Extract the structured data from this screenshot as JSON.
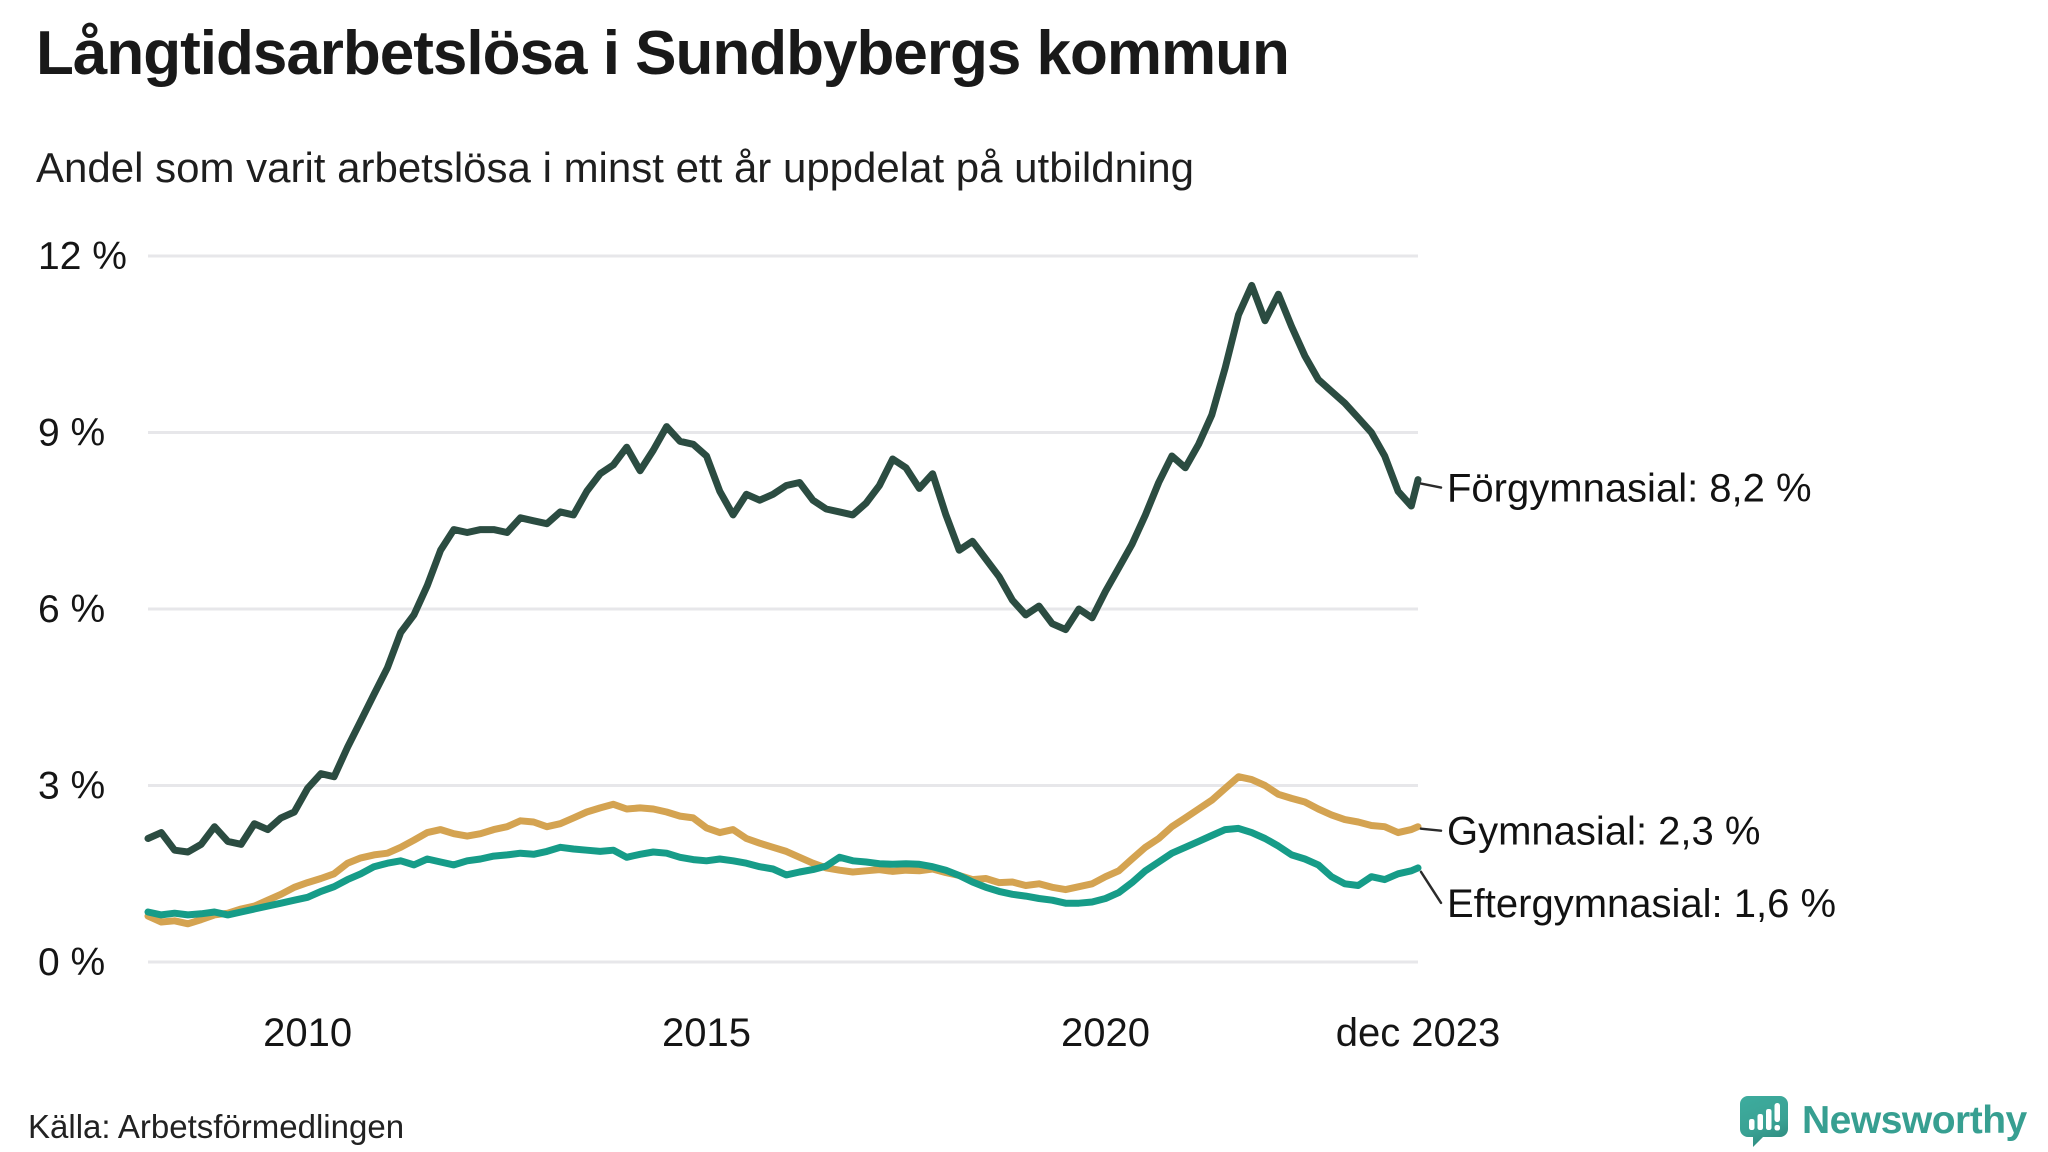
{
  "title": "Långtidsarbetslösa i Sundbybergs kommun",
  "subtitle": "Andel som varit arbetslösa i minst ett år uppdelat på utbildning",
  "source": "Källa: Arbetsförmedlingen",
  "brand": {
    "name": "Newsworthy",
    "color": "#3aa294"
  },
  "chart_data": {
    "type": "line",
    "title": "Långtidsarbetslösa i Sundbybergs kommun",
    "subtitle": "Andel som varit arbetslösa i minst ett år uppdelat på utbildning",
    "unit": "%",
    "grid": true,
    "x_range": [
      2008,
      2023.917
    ],
    "ylim": [
      0,
      12
    ],
    "y_ticks": [
      {
        "value": 12,
        "label": "12 %"
      },
      {
        "value": 9,
        "label": "9 %"
      },
      {
        "value": 6,
        "label": "6 %"
      },
      {
        "value": 3,
        "label": "3 %"
      },
      {
        "value": 0,
        "label": "0 %"
      }
    ],
    "x_ticks": [
      {
        "value": 2010,
        "label": "2010"
      },
      {
        "value": 2015,
        "label": "2015"
      },
      {
        "value": 2020,
        "label": "2020"
      },
      {
        "value": 2023.917,
        "label": "dec 2023"
      }
    ],
    "x": [
      2008,
      2008.167,
      2008.333,
      2008.5,
      2008.667,
      2008.833,
      2009,
      2009.167,
      2009.333,
      2009.5,
      2009.667,
      2009.833,
      2010,
      2010.167,
      2010.333,
      2010.5,
      2010.667,
      2010.833,
      2011,
      2011.167,
      2011.333,
      2011.5,
      2011.667,
      2011.833,
      2012,
      2012.167,
      2012.333,
      2012.5,
      2012.667,
      2012.833,
      2013,
      2013.167,
      2013.333,
      2013.5,
      2013.667,
      2013.833,
      2014,
      2014.167,
      2014.333,
      2014.5,
      2014.667,
      2014.833,
      2015,
      2015.167,
      2015.333,
      2015.5,
      2015.667,
      2015.833,
      2016,
      2016.167,
      2016.333,
      2016.5,
      2016.667,
      2016.833,
      2017,
      2017.167,
      2017.333,
      2017.5,
      2017.667,
      2017.833,
      2018,
      2018.167,
      2018.333,
      2018.5,
      2018.667,
      2018.833,
      2019,
      2019.167,
      2019.333,
      2019.5,
      2019.667,
      2019.833,
      2020,
      2020.167,
      2020.333,
      2020.5,
      2020.667,
      2020.833,
      2021,
      2021.167,
      2021.333,
      2021.5,
      2021.667,
      2021.833,
      2022,
      2022.167,
      2022.333,
      2022.5,
      2022.667,
      2022.833,
      2023,
      2023.167,
      2023.333,
      2023.5,
      2023.667,
      2023.833,
      2023.917
    ],
    "series": [
      {
        "name": "Förgymnasial",
        "end_label": "Förgymnasial: 8,2 %",
        "end_value": "8,2 %",
        "color": "#2b4c41",
        "values": [
          2.1,
          2.2,
          1.9,
          1.87,
          2.0,
          2.3,
          2.05,
          2.0,
          2.35,
          2.25,
          2.45,
          2.55,
          2.95,
          3.2,
          3.15,
          3.65,
          4.1,
          4.55,
          5.0,
          5.6,
          5.9,
          6.4,
          7.0,
          7.35,
          7.3,
          7.35,
          7.35,
          7.3,
          7.55,
          7.5,
          7.45,
          7.65,
          7.6,
          8.0,
          8.3,
          8.45,
          8.75,
          8.35,
          8.7,
          9.1,
          8.85,
          8.8,
          8.6,
          8.0,
          7.6,
          7.95,
          7.85,
          7.95,
          8.1,
          8.15,
          7.85,
          7.7,
          7.65,
          7.6,
          7.8,
          8.1,
          8.55,
          8.4,
          8.05,
          8.3,
          7.6,
          7.0,
          7.15,
          6.85,
          6.55,
          6.15,
          5.9,
          6.05,
          5.75,
          5.65,
          6.0,
          5.85,
          6.3,
          6.7,
          7.1,
          7.6,
          8.15,
          8.6,
          8.4,
          8.8,
          9.3,
          10.1,
          11.0,
          11.5,
          10.9,
          11.35,
          10.8,
          10.3,
          9.9,
          9.7,
          9.5,
          9.25,
          9.0,
          8.6,
          8.0,
          7.75,
          8.2
        ]
      },
      {
        "name": "Gymnasial",
        "end_label": "Gymnasial: 2,3 %",
        "end_value": "2,3 %",
        "color": "#d4a351",
        "values": [
          0.78,
          0.68,
          0.7,
          0.65,
          0.72,
          0.8,
          0.83,
          0.9,
          0.95,
          1.05,
          1.15,
          1.27,
          1.35,
          1.42,
          1.5,
          1.68,
          1.77,
          1.82,
          1.85,
          1.95,
          2.07,
          2.2,
          2.25,
          2.18,
          2.14,
          2.18,
          2.25,
          2.3,
          2.4,
          2.38,
          2.3,
          2.35,
          2.45,
          2.55,
          2.62,
          2.68,
          2.6,
          2.62,
          2.6,
          2.55,
          2.48,
          2.45,
          2.28,
          2.2,
          2.25,
          2.1,
          2.02,
          1.95,
          1.88,
          1.78,
          1.68,
          1.6,
          1.56,
          1.53,
          1.55,
          1.57,
          1.54,
          1.56,
          1.55,
          1.58,
          1.52,
          1.47,
          1.4,
          1.42,
          1.35,
          1.36,
          1.3,
          1.33,
          1.27,
          1.23,
          1.28,
          1.33,
          1.45,
          1.55,
          1.75,
          1.95,
          2.1,
          2.3,
          2.45,
          2.6,
          2.75,
          2.95,
          3.15,
          3.1,
          3.0,
          2.85,
          2.78,
          2.72,
          2.6,
          2.5,
          2.42,
          2.38,
          2.32,
          2.3,
          2.2,
          2.25,
          2.3
        ]
      },
      {
        "name": "Eftergymnasial",
        "end_label": "Eftergymnasial: 1,6 %",
        "end_value": "1,6 %",
        "color": "#169c88",
        "values": [
          0.85,
          0.8,
          0.83,
          0.8,
          0.82,
          0.85,
          0.8,
          0.85,
          0.9,
          0.95,
          1.0,
          1.05,
          1.1,
          1.2,
          1.28,
          1.4,
          1.5,
          1.62,
          1.68,
          1.72,
          1.65,
          1.75,
          1.7,
          1.65,
          1.72,
          1.75,
          1.8,
          1.82,
          1.85,
          1.83,
          1.88,
          1.95,
          1.92,
          1.9,
          1.88,
          1.9,
          1.78,
          1.83,
          1.87,
          1.85,
          1.78,
          1.74,
          1.72,
          1.75,
          1.72,
          1.68,
          1.62,
          1.58,
          1.48,
          1.53,
          1.57,
          1.63,
          1.78,
          1.72,
          1.7,
          1.67,
          1.66,
          1.67,
          1.66,
          1.62,
          1.56,
          1.47,
          1.36,
          1.27,
          1.2,
          1.15,
          1.12,
          1.08,
          1.05,
          1.0,
          1.0,
          1.02,
          1.08,
          1.18,
          1.35,
          1.55,
          1.7,
          1.85,
          1.95,
          2.05,
          2.15,
          2.25,
          2.27,
          2.2,
          2.1,
          1.97,
          1.82,
          1.75,
          1.65,
          1.45,
          1.33,
          1.3,
          1.45,
          1.4,
          1.5,
          1.55,
          1.6
        ]
      }
    ],
    "colors": {
      "gridline": "#e7e7ea",
      "text": "#151515"
    },
    "legend_position": "end-of-line-labels"
  }
}
